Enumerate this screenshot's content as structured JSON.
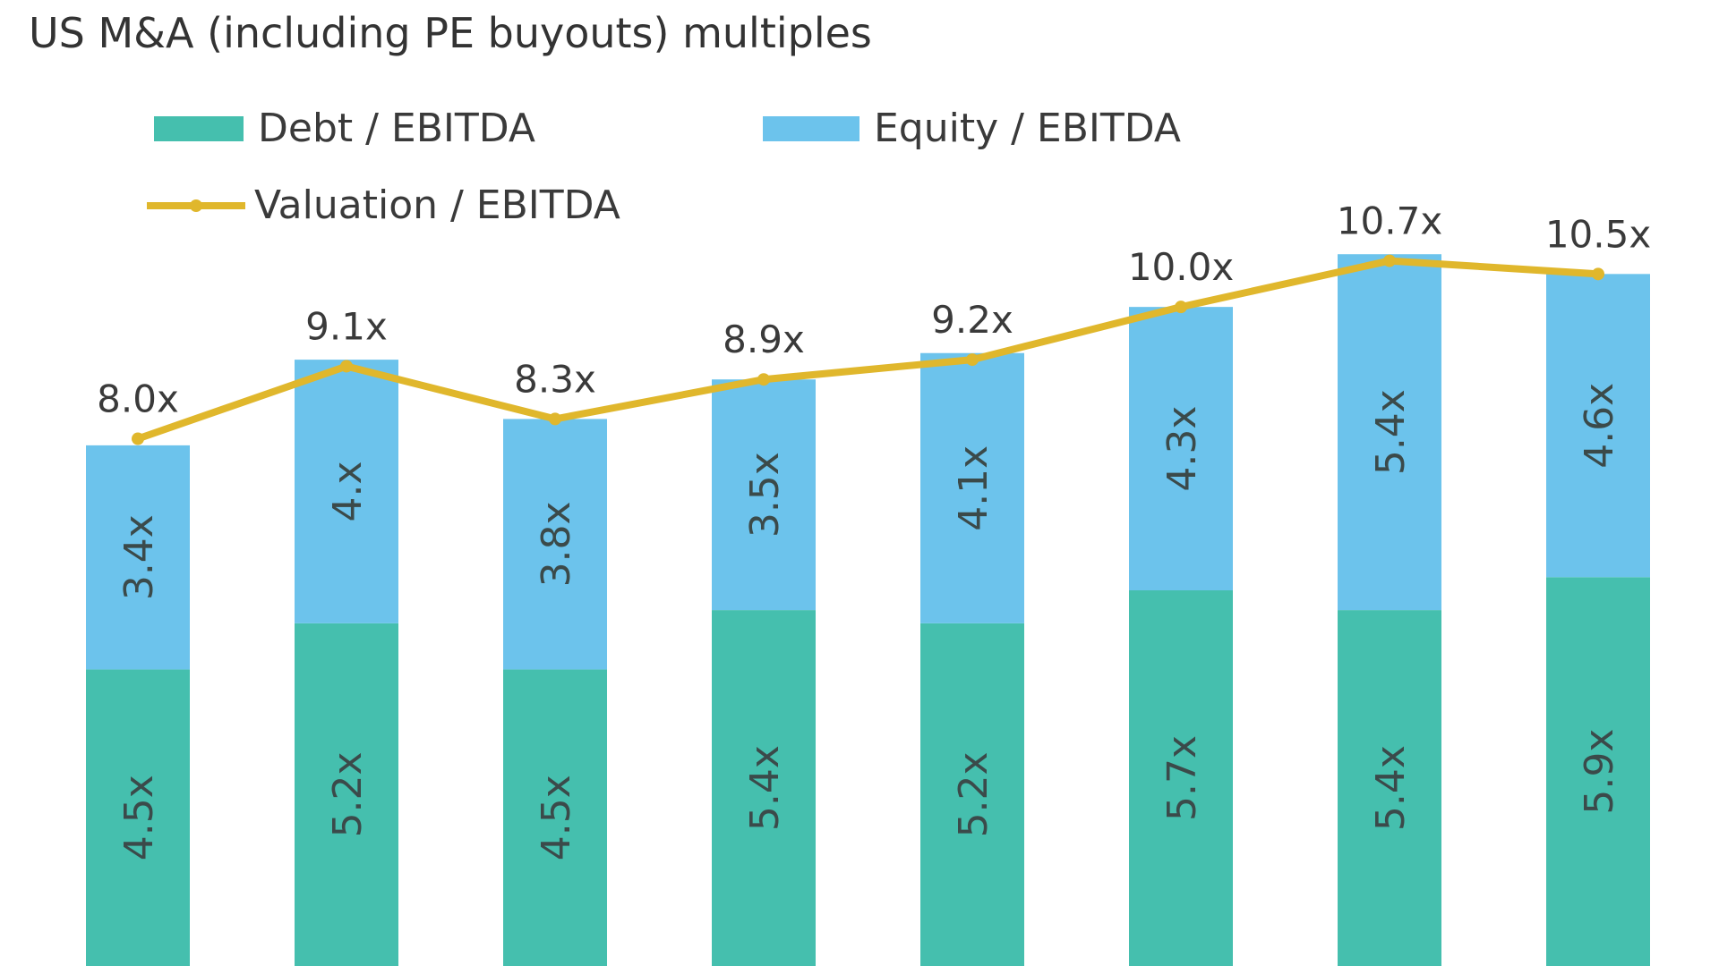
{
  "title": "US M&A (including PE buyouts) multiples",
  "legend": {
    "debt": "Debt / EBITDA",
    "equity": "Equity / EBITDA",
    "valuation": "Valuation / EBITDA"
  },
  "colors": {
    "debt": "#45bfae",
    "equity": "#6cc3ec",
    "valuation": "#e0b72c",
    "text": "#3a3a3a"
  },
  "chart_data": {
    "type": "bar",
    "stacked": true,
    "title": "US M&A (including PE buyouts) multiples",
    "categories": [
      "",
      "",
      "",
      "",
      "",
      "",
      "",
      ""
    ],
    "series": [
      {
        "name": "Debt / EBITDA",
        "type": "bar",
        "values": [
          4.5,
          5.2,
          4.5,
          5.4,
          5.2,
          5.7,
          5.4,
          5.9
        ],
        "labels": [
          "4.5x",
          "5.2x",
          "4.5x",
          "5.4x",
          "5.2x",
          "5.7x",
          "5.4x",
          "5.9x"
        ]
      },
      {
        "name": "Equity / EBITDA",
        "type": "bar",
        "values": [
          3.4,
          4.0,
          3.8,
          3.5,
          4.1,
          4.3,
          5.4,
          4.6
        ],
        "labels": [
          "3.4x",
          "4.x",
          "3.8x",
          "3.5x",
          "4.1x",
          "4.3x",
          "5.4x",
          "4.6x"
        ]
      },
      {
        "name": "Valuation / EBITDA",
        "type": "line",
        "values": [
          8.0,
          9.1,
          8.3,
          8.9,
          9.2,
          10.0,
          10.7,
          10.5
        ],
        "labels": [
          "8.0x",
          "9.1x",
          "8.3x",
          "8.9x",
          "9.2x",
          "10.0x",
          "10.7x",
          "10.5x"
        ]
      }
    ],
    "ylim": [
      0,
      11.4
    ],
    "xlabel": "",
    "ylabel": "",
    "grid": false,
    "legend_position": "top-left"
  }
}
